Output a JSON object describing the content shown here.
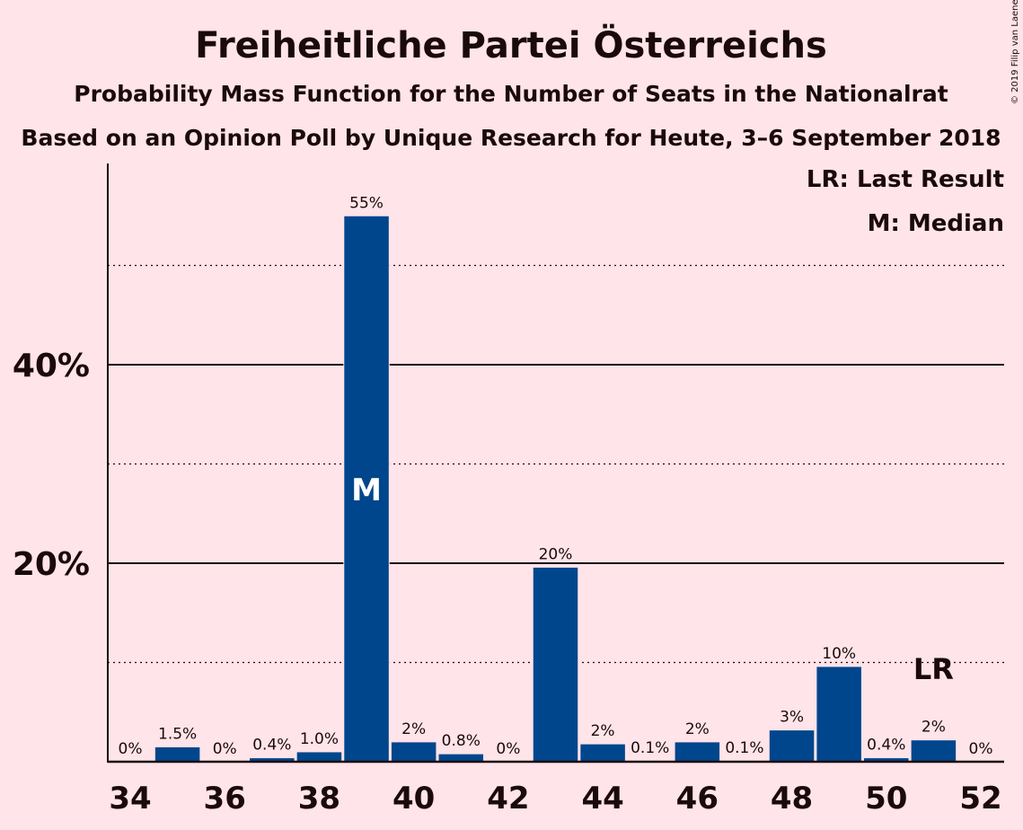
{
  "chart_data": {
    "type": "bar",
    "title": "Freiheitliche Partei Österreichs",
    "subtitle": "Probability Mass Function for the Number of Seats in the Nationalrat",
    "subtitle2": "Based on an Opinion Poll by Unique Research for Heute, 3–6 September 2018",
    "copyright": "© 2019 Filip van Laenen",
    "legend": {
      "last_result": "LR: Last Result",
      "median": "M: Median",
      "placement": "top-right"
    },
    "x": [
      34,
      35,
      36,
      37,
      38,
      39,
      40,
      41,
      42,
      43,
      44,
      45,
      46,
      47,
      48,
      49,
      50,
      51,
      52
    ],
    "values": [
      0,
      1.5,
      0,
      0.4,
      1.0,
      55,
      2,
      0.8,
      0,
      19.6,
      1.8,
      0.1,
      2,
      0.1,
      3.2,
      9.6,
      0.4,
      2.2,
      0
    ],
    "labels": [
      "0%",
      "1.5%",
      "0%",
      "0.4%",
      "1.0%",
      "55%",
      "2%",
      "0.8%",
      "0%",
      "20%",
      "2%",
      "0.1%",
      "2%",
      "0.1%",
      "3%",
      "10%",
      "0.4%",
      "2%",
      "0%"
    ],
    "x_ticks": [
      34,
      36,
      38,
      40,
      42,
      44,
      46,
      48,
      50,
      52
    ],
    "y_ticks": [
      {
        "value": 20,
        "label": "20%"
      },
      {
        "value": 40,
        "label": "40%"
      }
    ],
    "y_minor_gridlines": [
      10,
      30,
      50
    ],
    "ylim": [
      0,
      60
    ],
    "median_seat": 39,
    "median_marker": "M",
    "last_result_seat": 51,
    "last_result_marker": "LR",
    "bar_color": "#00468C",
    "background_color": "#FFE4E9",
    "grid": true
  }
}
